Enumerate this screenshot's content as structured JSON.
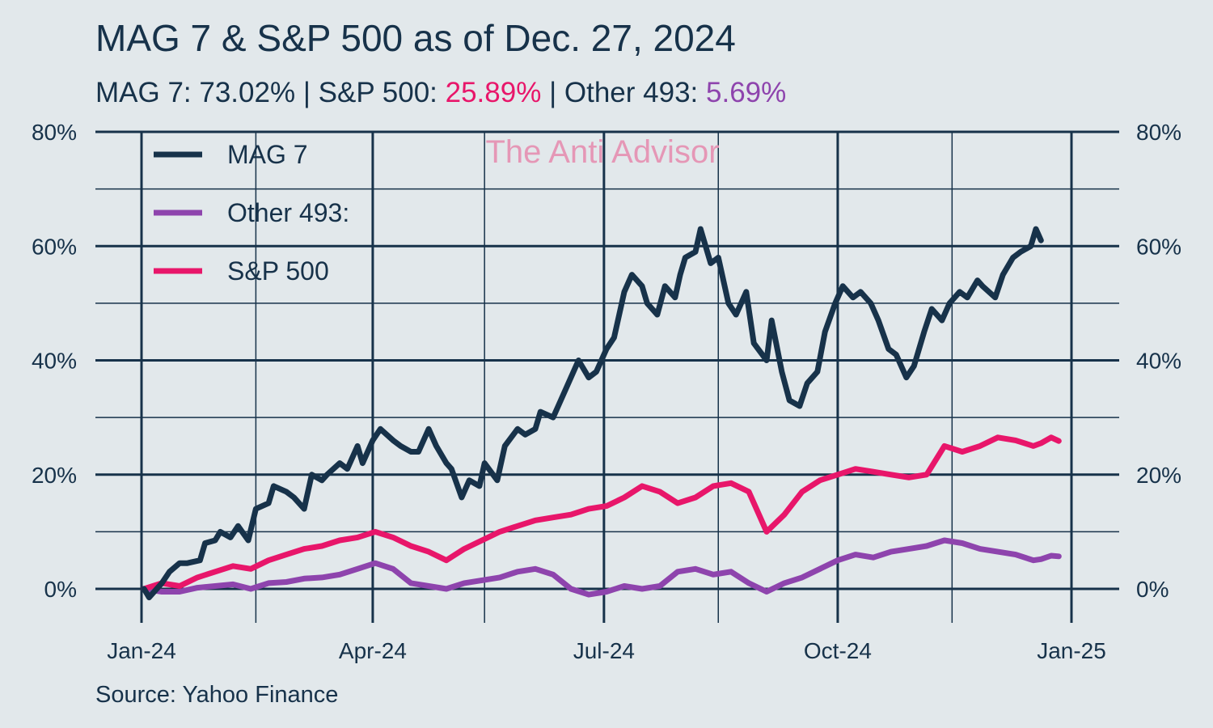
{
  "title": "MAG 7 & S&P 500 as of Dec. 27, 2024",
  "subtitle": {
    "mag7_label": "MAG 7: ",
    "mag7_value": "73.02%",
    "sep1": " | ",
    "sp500_label": "S&P 500: ",
    "sp500_value": "25.89%",
    "sep2": " | ",
    "other_label": "Other 493: ",
    "other_value": "5.69%"
  },
  "watermark": "The Anti Advisor",
  "source": "Source: Yahoo Finance",
  "colors": {
    "background": "#e2e8eb",
    "text": "#17324a",
    "mag7": "#17324a",
    "sp500": "#e8166a",
    "other493": "#8e44ad",
    "watermark": "#e597b6"
  },
  "chart_data": {
    "type": "line",
    "x_unit": "date",
    "ylim": [
      -0.05,
      0.8
    ],
    "y_ticks": [
      0,
      0.2,
      0.4,
      0.6,
      0.8
    ],
    "y_tick_labels": [
      "0%",
      "20%",
      "40%",
      "60%",
      "80%"
    ],
    "y_minor_ticks": [
      0.1,
      0.3,
      0.5,
      0.7
    ],
    "x_ticks": [
      "2024-01-01",
      "2024-04-01",
      "2024-07-01",
      "2024-10-01",
      "2025-01-01"
    ],
    "x_tick_labels": [
      "Jan-24",
      "Apr-24",
      "Jul-24",
      "Oct-24",
      "Jan-25"
    ],
    "x_minor_ticks": [
      "2024-02-15",
      "2024-05-15",
      "2024-08-15",
      "2024-11-15"
    ],
    "grid": true,
    "legend_position": "top-left",
    "series": [
      {
        "name": "MAG 7",
        "key": "mag7",
        "points": [
          [
            "2024-01-02",
            0.0
          ],
          [
            "2024-01-04",
            -0.015
          ],
          [
            "2024-01-09",
            0.01
          ],
          [
            "2024-01-12",
            0.03
          ],
          [
            "2024-01-16",
            0.045
          ],
          [
            "2024-01-19",
            0.045
          ],
          [
            "2024-01-24",
            0.05
          ],
          [
            "2024-01-26",
            0.08
          ],
          [
            "2024-01-30",
            0.085
          ],
          [
            "2024-02-01",
            0.1
          ],
          [
            "2024-02-05",
            0.09
          ],
          [
            "2024-02-08",
            0.11
          ],
          [
            "2024-02-12",
            0.085
          ],
          [
            "2024-02-15",
            0.14
          ],
          [
            "2024-02-20",
            0.15
          ],
          [
            "2024-02-22",
            0.18
          ],
          [
            "2024-02-27",
            0.17
          ],
          [
            "2024-03-01",
            0.16
          ],
          [
            "2024-03-05",
            0.14
          ],
          [
            "2024-03-08",
            0.2
          ],
          [
            "2024-03-12",
            0.19
          ],
          [
            "2024-03-14",
            0.2
          ],
          [
            "2024-03-19",
            0.22
          ],
          [
            "2024-03-22",
            0.21
          ],
          [
            "2024-03-26",
            0.25
          ],
          [
            "2024-03-28",
            0.22
          ],
          [
            "2024-04-01",
            0.26
          ],
          [
            "2024-04-04",
            0.28
          ],
          [
            "2024-04-09",
            0.26
          ],
          [
            "2024-04-12",
            0.25
          ],
          [
            "2024-04-16",
            0.24
          ],
          [
            "2024-04-19",
            0.24
          ],
          [
            "2024-04-23",
            0.28
          ],
          [
            "2024-04-26",
            0.25
          ],
          [
            "2024-04-30",
            0.22
          ],
          [
            "2024-05-02",
            0.21
          ],
          [
            "2024-05-06",
            0.16
          ],
          [
            "2024-05-09",
            0.19
          ],
          [
            "2024-05-13",
            0.18
          ],
          [
            "2024-05-15",
            0.22
          ],
          [
            "2024-05-20",
            0.19
          ],
          [
            "2024-05-23",
            0.25
          ],
          [
            "2024-05-28",
            0.28
          ],
          [
            "2024-05-31",
            0.27
          ],
          [
            "2024-06-04",
            0.28
          ],
          [
            "2024-06-06",
            0.31
          ],
          [
            "2024-06-11",
            0.3
          ],
          [
            "2024-06-13",
            0.32
          ],
          [
            "2024-06-18",
            0.37
          ],
          [
            "2024-06-21",
            0.4
          ],
          [
            "2024-06-25",
            0.37
          ],
          [
            "2024-06-28",
            0.38
          ],
          [
            "2024-07-02",
            0.42
          ],
          [
            "2024-07-05",
            0.44
          ],
          [
            "2024-07-09",
            0.52
          ],
          [
            "2024-07-12",
            0.55
          ],
          [
            "2024-07-16",
            0.53
          ],
          [
            "2024-07-18",
            0.5
          ],
          [
            "2024-07-22",
            0.48
          ],
          [
            "2024-07-25",
            0.53
          ],
          [
            "2024-07-29",
            0.51
          ],
          [
            "2024-07-31",
            0.55
          ],
          [
            "2024-08-02",
            0.58
          ],
          [
            "2024-08-06",
            0.59
          ],
          [
            "2024-08-08",
            0.63
          ],
          [
            "2024-08-12",
            0.57
          ],
          [
            "2024-08-15",
            0.58
          ],
          [
            "2024-08-19",
            0.5
          ],
          [
            "2024-08-22",
            0.48
          ],
          [
            "2024-08-26",
            0.52
          ],
          [
            "2024-08-29",
            0.43
          ],
          [
            "2024-09-03",
            0.4
          ],
          [
            "2024-09-05",
            0.47
          ],
          [
            "2024-09-09",
            0.38
          ],
          [
            "2024-09-12",
            0.33
          ],
          [
            "2024-09-16",
            0.32
          ],
          [
            "2024-09-19",
            0.36
          ],
          [
            "2024-09-23",
            0.38
          ],
          [
            "2024-09-26",
            0.45
          ],
          [
            "2024-09-30",
            0.5
          ],
          [
            "2024-10-03",
            0.53
          ],
          [
            "2024-10-07",
            0.51
          ],
          [
            "2024-10-10",
            0.52
          ],
          [
            "2024-10-14",
            0.5
          ],
          [
            "2024-10-17",
            0.47
          ],
          [
            "2024-10-21",
            0.42
          ],
          [
            "2024-10-24",
            0.41
          ],
          [
            "2024-10-28",
            0.37
          ],
          [
            "2024-10-31",
            0.39
          ],
          [
            "2024-11-04",
            0.45
          ],
          [
            "2024-11-07",
            0.49
          ],
          [
            "2024-11-11",
            0.47
          ],
          [
            "2024-11-14",
            0.5
          ],
          [
            "2024-11-18",
            0.52
          ],
          [
            "2024-11-21",
            0.51
          ],
          [
            "2024-11-25",
            0.54
          ],
          [
            "2024-11-27",
            0.53
          ],
          [
            "2024-12-02",
            0.51
          ],
          [
            "2024-12-05",
            0.55
          ],
          [
            "2024-12-09",
            0.58
          ],
          [
            "2024-12-12",
            0.59
          ],
          [
            "2024-12-16",
            0.6
          ],
          [
            "2024-12-18",
            0.63
          ],
          [
            "2024-12-20",
            0.61
          ]
        ]
      },
      {
        "name": "Other 493:",
        "key": "other493",
        "points": [
          [
            "2024-01-02",
            0.0
          ],
          [
            "2024-01-09",
            -0.005
          ],
          [
            "2024-01-16",
            -0.005
          ],
          [
            "2024-01-23",
            0.002
          ],
          [
            "2024-01-30",
            0.005
          ],
          [
            "2024-02-06",
            0.008
          ],
          [
            "2024-02-13",
            0.0
          ],
          [
            "2024-02-20",
            0.01
          ],
          [
            "2024-02-27",
            0.012
          ],
          [
            "2024-03-05",
            0.018
          ],
          [
            "2024-03-12",
            0.02
          ],
          [
            "2024-03-19",
            0.025
          ],
          [
            "2024-03-26",
            0.035
          ],
          [
            "2024-04-02",
            0.045
          ],
          [
            "2024-04-09",
            0.035
          ],
          [
            "2024-04-16",
            0.01
          ],
          [
            "2024-04-23",
            0.005
          ],
          [
            "2024-04-30",
            0.0
          ],
          [
            "2024-05-07",
            0.01
          ],
          [
            "2024-05-14",
            0.015
          ],
          [
            "2024-05-21",
            0.02
          ],
          [
            "2024-05-28",
            0.03
          ],
          [
            "2024-06-04",
            0.035
          ],
          [
            "2024-06-11",
            0.025
          ],
          [
            "2024-06-18",
            0.0
          ],
          [
            "2024-06-25",
            -0.01
          ],
          [
            "2024-07-02",
            -0.005
          ],
          [
            "2024-07-09",
            0.005
          ],
          [
            "2024-07-16",
            0.0
          ],
          [
            "2024-07-23",
            0.005
          ],
          [
            "2024-07-30",
            0.03
          ],
          [
            "2024-08-06",
            0.035
          ],
          [
            "2024-08-13",
            0.025
          ],
          [
            "2024-08-20",
            0.03
          ],
          [
            "2024-08-27",
            0.01
          ],
          [
            "2024-09-03",
            -0.005
          ],
          [
            "2024-09-10",
            0.01
          ],
          [
            "2024-09-17",
            0.02
          ],
          [
            "2024-09-24",
            0.035
          ],
          [
            "2024-10-01",
            0.05
          ],
          [
            "2024-10-08",
            0.06
          ],
          [
            "2024-10-15",
            0.055
          ],
          [
            "2024-10-22",
            0.065
          ],
          [
            "2024-10-29",
            0.07
          ],
          [
            "2024-11-05",
            0.075
          ],
          [
            "2024-11-12",
            0.085
          ],
          [
            "2024-11-19",
            0.08
          ],
          [
            "2024-11-26",
            0.07
          ],
          [
            "2024-12-03",
            0.065
          ],
          [
            "2024-12-10",
            0.06
          ],
          [
            "2024-12-17",
            0.05
          ],
          [
            "2024-12-20",
            0.052
          ],
          [
            "2024-12-24",
            0.058
          ],
          [
            "2024-12-27",
            0.0569
          ]
        ]
      },
      {
        "name": "S&P 500",
        "key": "sp500",
        "points": [
          [
            "2024-01-02",
            0.0
          ],
          [
            "2024-01-09",
            0.01
          ],
          [
            "2024-01-16",
            0.005
          ],
          [
            "2024-01-23",
            0.02
          ],
          [
            "2024-01-30",
            0.03
          ],
          [
            "2024-02-06",
            0.04
          ],
          [
            "2024-02-13",
            0.035
          ],
          [
            "2024-02-20",
            0.05
          ],
          [
            "2024-02-27",
            0.06
          ],
          [
            "2024-03-05",
            0.07
          ],
          [
            "2024-03-12",
            0.075
          ],
          [
            "2024-03-19",
            0.085
          ],
          [
            "2024-03-26",
            0.09
          ],
          [
            "2024-04-02",
            0.1
          ],
          [
            "2024-04-09",
            0.09
          ],
          [
            "2024-04-16",
            0.075
          ],
          [
            "2024-04-23",
            0.065
          ],
          [
            "2024-04-30",
            0.05
          ],
          [
            "2024-05-07",
            0.07
          ],
          [
            "2024-05-14",
            0.085
          ],
          [
            "2024-05-21",
            0.1
          ],
          [
            "2024-05-28",
            0.11
          ],
          [
            "2024-06-04",
            0.12
          ],
          [
            "2024-06-11",
            0.125
          ],
          [
            "2024-06-18",
            0.13
          ],
          [
            "2024-06-25",
            0.14
          ],
          [
            "2024-07-02",
            0.145
          ],
          [
            "2024-07-09",
            0.16
          ],
          [
            "2024-07-16",
            0.18
          ],
          [
            "2024-07-23",
            0.17
          ],
          [
            "2024-07-30",
            0.15
          ],
          [
            "2024-08-06",
            0.16
          ],
          [
            "2024-08-13",
            0.18
          ],
          [
            "2024-08-20",
            0.185
          ],
          [
            "2024-08-27",
            0.17
          ],
          [
            "2024-09-03",
            0.1
          ],
          [
            "2024-09-10",
            0.13
          ],
          [
            "2024-09-17",
            0.17
          ],
          [
            "2024-09-24",
            0.19
          ],
          [
            "2024-10-01",
            0.2
          ],
          [
            "2024-10-08",
            0.21
          ],
          [
            "2024-10-15",
            0.205
          ],
          [
            "2024-10-22",
            0.2
          ],
          [
            "2024-10-29",
            0.195
          ],
          [
            "2024-11-05",
            0.2
          ],
          [
            "2024-11-12",
            0.25
          ],
          [
            "2024-11-19",
            0.24
          ],
          [
            "2024-11-26",
            0.25
          ],
          [
            "2024-12-03",
            0.265
          ],
          [
            "2024-12-10",
            0.26
          ],
          [
            "2024-12-17",
            0.25
          ],
          [
            "2024-12-20",
            0.255
          ],
          [
            "2024-12-24",
            0.265
          ],
          [
            "2024-12-27",
            0.2589
          ]
        ]
      }
    ]
  }
}
